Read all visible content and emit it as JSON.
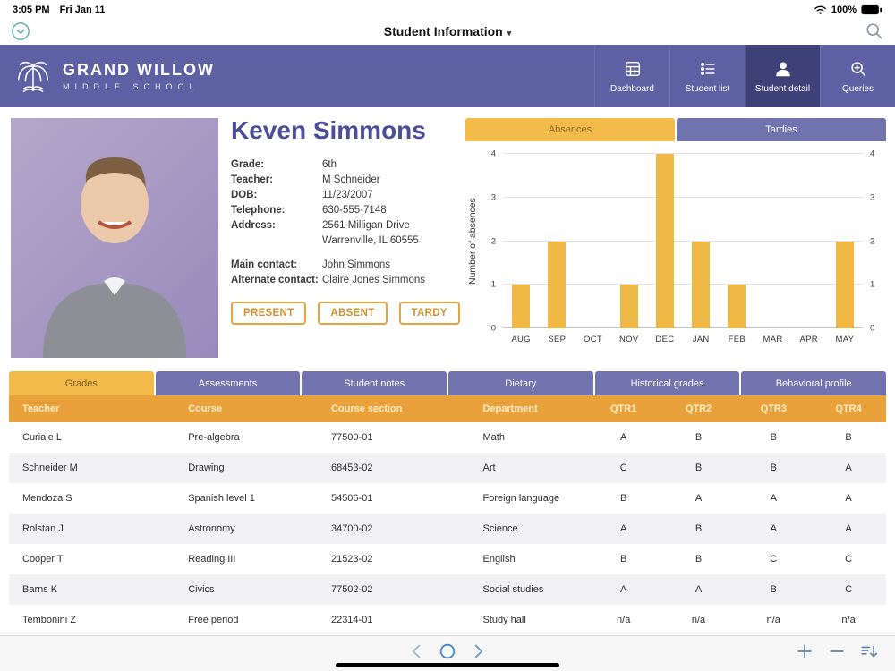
{
  "status_bar": {
    "time": "3:05 PM",
    "date": "Fri Jan 11",
    "battery": "100%",
    "icons": [
      "wifi-icon",
      "battery-icon"
    ]
  },
  "toolbar": {
    "title": "Student Information",
    "caret": "▾",
    "icons": [
      "window-chevron-icon",
      "search-icon"
    ]
  },
  "school": {
    "name_line1": "GRAND WILLOW",
    "name_line2": "MIDDLE SCHOOL",
    "logo_icon": "willow-tree-icon"
  },
  "nav": {
    "items": [
      {
        "label": "Dashboard",
        "icon": "dashboard",
        "active": false
      },
      {
        "label": "Student list",
        "icon": "list",
        "active": false
      },
      {
        "label": "Student detail",
        "icon": "person",
        "active": true
      },
      {
        "label": "Queries",
        "icon": "query",
        "active": false
      }
    ]
  },
  "student": {
    "name": "Keven Simmons",
    "fields": [
      {
        "label": "Grade:",
        "value": "6th"
      },
      {
        "label": "Teacher:",
        "value": "M Schneider"
      },
      {
        "label": "DOB:",
        "value": "11/23/2007"
      },
      {
        "label": "Telephone:",
        "value": "630-555-7148"
      },
      {
        "label": "Address:",
        "value": "2561 Milligan Drive",
        "value2": "Warrenville, IL  60555"
      },
      {
        "label": "Main contact:",
        "value": "John Simmons",
        "spaced": true
      },
      {
        "label": "Alternate contact:",
        "value": "Claire Jones Simmons"
      }
    ],
    "attendance_buttons": [
      "PRESENT",
      "ABSENT",
      "TARDY"
    ]
  },
  "chart_tabs": [
    {
      "label": "Absences",
      "active": true
    },
    {
      "label": "Tardies",
      "active": false
    }
  ],
  "chart_data": {
    "type": "bar",
    "categories": [
      "AUG",
      "SEP",
      "OCT",
      "NOV",
      "DEC",
      "JAN",
      "FEB",
      "MAR",
      "APR",
      "MAY"
    ],
    "values": [
      1,
      2,
      0,
      1,
      4,
      2,
      1,
      0,
      0,
      2
    ],
    "title": "",
    "xlabel": "",
    "ylabel": "Number of absences",
    "ylim": [
      0,
      4
    ],
    "yticks": [
      0,
      1,
      2,
      3,
      4
    ],
    "grid": true,
    "bar_color": "#f0b946"
  },
  "detail_tabs": [
    {
      "label": "Grades",
      "active": true
    },
    {
      "label": "Assessments",
      "active": false
    },
    {
      "label": "Student notes",
      "active": false
    },
    {
      "label": "Dietary",
      "active": false
    },
    {
      "label": "Historical grades",
      "active": false
    },
    {
      "label": "Behavioral profile",
      "active": false
    }
  ],
  "grades_table": {
    "columns": [
      "Teacher",
      "Course",
      "Course section",
      "Department",
      "QTR1",
      "QTR2",
      "QTR3",
      "QTR4"
    ],
    "rows": [
      [
        "Curiale L",
        "Pre-algebra",
        "77500-01",
        "Math",
        "A",
        "B",
        "B",
        "B"
      ],
      [
        "Schneider M",
        "Drawing",
        "68453-02",
        "Art",
        "C",
        "B",
        "B",
        "A"
      ],
      [
        "Mendoza S",
        "Spanish level 1",
        "54506-01",
        "Foreign language",
        "B",
        "A",
        "A",
        "A"
      ],
      [
        "Rolstan J",
        "Astronomy",
        "34700-02",
        "Science",
        "A",
        "B",
        "A",
        "A"
      ],
      [
        "Cooper T",
        "Reading III",
        "21523-02",
        "English",
        "B",
        "B",
        "C",
        "C"
      ],
      [
        "Barns K",
        "Civics",
        "77502-02",
        "Social studies",
        "A",
        "A",
        "B",
        "C"
      ],
      [
        "Tembonini Z",
        "Free period",
        "22314-01",
        "Study hall",
        "n/a",
        "n/a",
        "n/a",
        "n/a"
      ]
    ]
  },
  "footer": {
    "center_icons": [
      "chevron-left",
      "record-circle",
      "chevron-right"
    ],
    "right_icons": [
      "plus",
      "minus",
      "sort"
    ]
  },
  "colors": {
    "band_purple": "#5d60a3",
    "active_nav_purple": "#3e4177",
    "tab_purple": "#7173af",
    "accent_orange": "#f2bb4a",
    "table_header_orange": "#e9a23b",
    "name_purple": "#4b4d99"
  }
}
